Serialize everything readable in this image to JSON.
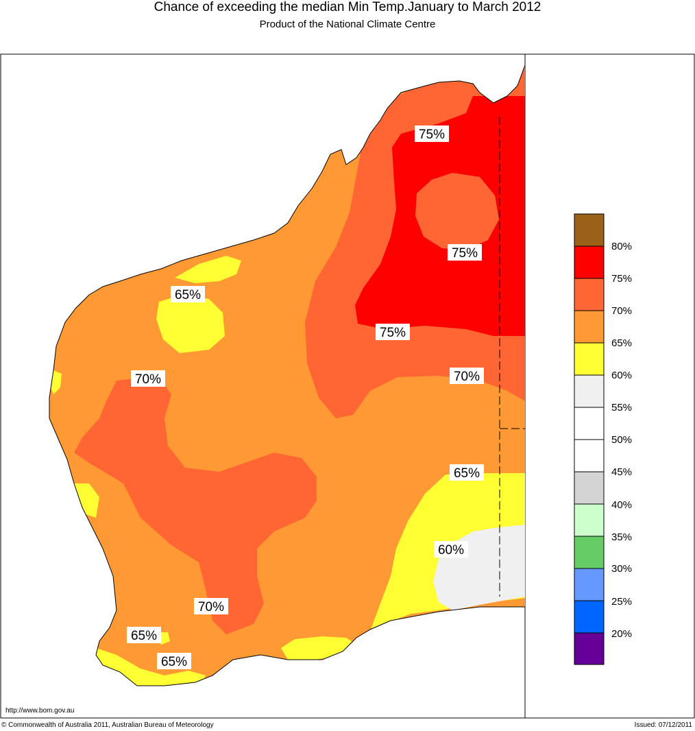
{
  "header": {
    "title": "Chance of exceeding the median Min Temp.January to March 2012",
    "subtitle": "Product of the National Climate Centre"
  },
  "colors": {
    "c80": "#9b6119",
    "c75": "#ff0000",
    "c70": "#ff6633",
    "c65": "#ff9933",
    "c60": "#ffff33",
    "c55": "#f0f0f0",
    "c50": "#ffffff",
    "c45": "#ffffff",
    "c40": "#d4d4d4",
    "c35": "#ccffcc",
    "c30": "#66cc66",
    "c25": "#6699ff",
    "c20": "#0066ff",
    "c15": "#660099"
  },
  "contour_labels": [
    "75%",
    "75%",
    "75%",
    "70%",
    "70%",
    "70%",
    "65%",
    "65%",
    "65%",
    "65%",
    "60%"
  ],
  "legend": {
    "labels": [
      "80%",
      "75%",
      "70%",
      "65%",
      "60%",
      "55%",
      "50%",
      "45%",
      "40%",
      "35%",
      "30%",
      "25%",
      "20%"
    ]
  },
  "footer": {
    "url": "http://www.bom.gov.au",
    "copyright": "© Commonwealth of Australia 2011, Australian Bureau of Meteorology",
    "issued": "Issued: 07/12/2011"
  }
}
